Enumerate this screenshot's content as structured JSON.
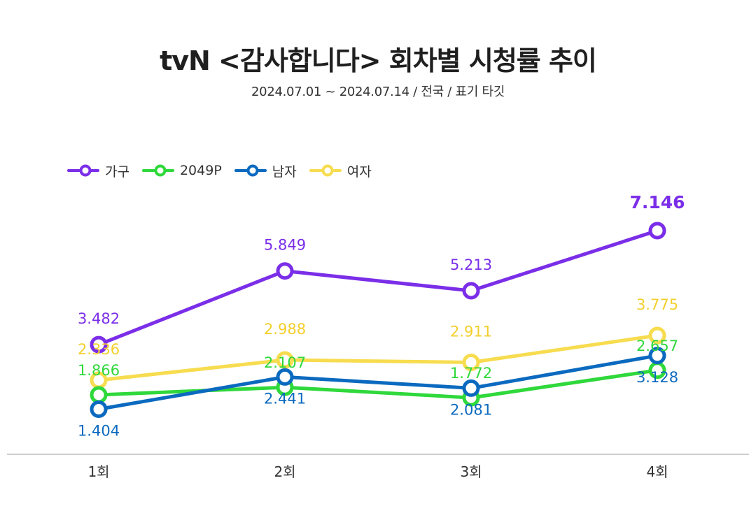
{
  "chart_data": {
    "type": "line",
    "title": "tvN <감사합니다> 회차별 시청률 추이",
    "subtitle": "2024.07.01 ~ 2024.07.14 / 전국 / 표기 타깃",
    "categories": [
      "1회",
      "2회",
      "3회",
      "4회"
    ],
    "series": [
      {
        "name": "가구",
        "values": [
          3.482,
          5.849,
          5.213,
          7.146
        ],
        "color": "#7b2ee8"
      },
      {
        "name": "2049P",
        "values": [
          1.866,
          2.107,
          1.772,
          2.657
        ],
        "color": "#2fd83b"
      },
      {
        "name": "남자",
        "values": [
          1.404,
          2.441,
          2.081,
          3.128
        ],
        "color": "#0b6abf"
      },
      {
        "name": "여자",
        "values": [
          2.336,
          2.988,
          2.911,
          3.775
        ],
        "color": "#f7dc4f"
      }
    ],
    "legend_position": "top-left",
    "grid": false
  }
}
